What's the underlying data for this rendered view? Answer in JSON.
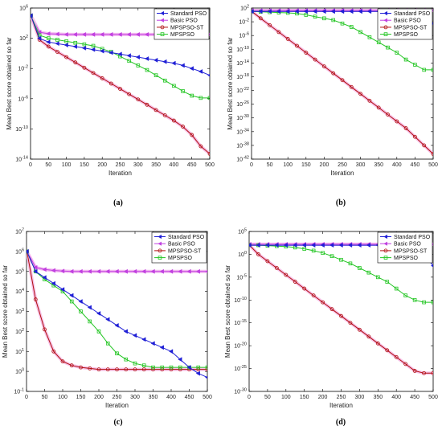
{
  "colors": {
    "standard_pso": "#1f1fd6",
    "basic_pso": "#c040e0",
    "mpspso_st": "#b01010",
    "mpspso": "#22c522",
    "basic_pso_halo": "#f4b8f0",
    "mpspso_st_halo": "#f7c2e8"
  },
  "chart_data": [
    {
      "id": "a",
      "type": "line",
      "caption": "(a)",
      "xlabel": "Iteration",
      "ylabel": "Mean Best score obtained so far",
      "yscale": "log",
      "xlim": [
        0,
        500
      ],
      "ylim_exp": [
        -14,
        6
      ],
      "x_ticks": [
        0,
        50,
        100,
        150,
        200,
        250,
        300,
        350,
        400,
        450,
        500
      ],
      "y_ticks_exp": [
        6,
        2,
        -2,
        -6,
        -10,
        -14
      ],
      "legend_position": "top-right",
      "x": [
        1,
        25,
        50,
        75,
        100,
        125,
        150,
        175,
        200,
        225,
        250,
        275,
        300,
        325,
        350,
        375,
        400,
        425,
        450,
        475,
        500
      ],
      "series": [
        {
          "name": "Standard PSO",
          "key": "standard_pso",
          "marker": "triangle-left",
          "log10_values": [
            5,
            2,
            1.5,
            1.3,
            1.1,
            0.9,
            0.7,
            0.5,
            0.3,
            0.1,
            -0.1,
            -0.3,
            -0.5,
            -0.7,
            -0.9,
            -1.1,
            -1.3,
            -1.6,
            -2,
            -2.4,
            -2.9
          ]
        },
        {
          "name": "Basic PSO",
          "key": "basic_pso",
          "marker": "triangle-left",
          "log10_values": [
            5,
            2.8,
            2.6,
            2.55,
            2.5,
            2.5,
            2.5,
            2.5,
            2.5,
            2.5,
            2.5,
            2.5,
            2.5,
            2.5,
            2.5,
            2.5,
            2.5,
            2.5,
            2.5,
            2.5,
            2.5
          ]
        },
        {
          "name": "MPSPSO-ST",
          "key": "mpspso_st",
          "marker": "circle",
          "log10_values": [
            5,
            1.8,
            0.9,
            0.2,
            -0.5,
            -1.2,
            -1.9,
            -2.6,
            -3.3,
            -4,
            -4.7,
            -5.4,
            -6.1,
            -6.8,
            -7.5,
            -8.2,
            -8.9,
            -9.7,
            -10.8,
            -12.3,
            -13.3
          ]
        },
        {
          "name": "MPSPSO",
          "key": "mpspso",
          "marker": "square",
          "log10_values": [
            5,
            2.4,
            2,
            1.8,
            1.6,
            1.4,
            1.2,
            1,
            0.6,
            0.2,
            -0.4,
            -1,
            -1.6,
            -2.2,
            -2.9,
            -3.6,
            -4.3,
            -5,
            -5.6,
            -5.9,
            -5.9
          ]
        }
      ]
    },
    {
      "id": "b",
      "type": "line",
      "caption": "(b)",
      "xlabel": "Iteration",
      "ylabel": "Mean Best score obtained so far",
      "yscale": "log",
      "xlim": [
        0,
        500
      ],
      "ylim_exp": [
        -42,
        2
      ],
      "x_ticks": [
        0,
        50,
        100,
        150,
        200,
        250,
        300,
        350,
        400,
        450,
        500
      ],
      "y_ticks_exp": [
        2,
        -2,
        -6,
        -10,
        -14,
        -18,
        -22,
        -26,
        -30,
        -34,
        -38,
        -42
      ],
      "legend_position": "top-right",
      "x": [
        1,
        25,
        50,
        75,
        100,
        125,
        150,
        175,
        200,
        225,
        250,
        275,
        300,
        325,
        350,
        375,
        400,
        425,
        450,
        475,
        500
      ],
      "series": [
        {
          "name": "Standard PSO",
          "key": "standard_pso",
          "marker": "triangle-left",
          "log10_values": [
            1,
            1,
            1,
            1,
            1,
            1,
            1,
            1,
            1,
            1,
            1,
            1,
            1,
            1,
            1,
            1,
            0.9,
            0.7,
            0.3,
            -0.6,
            -2.5
          ]
        },
        {
          "name": "Basic PSO",
          "key": "basic_pso",
          "marker": "triangle-left",
          "log10_values": [
            1.3,
            1.3,
            1.3,
            1.3,
            1.3,
            1.3,
            1.3,
            1.3,
            1.3,
            1.3,
            1.3,
            1.3,
            1.3,
            1.3,
            1.3,
            1.3,
            1.3,
            1.3,
            1.3,
            1.3,
            1.3
          ]
        },
        {
          "name": "MPSPSO-ST",
          "key": "mpspso_st",
          "marker": "circle",
          "log10_values": [
            1,
            -1,
            -3,
            -5,
            -7,
            -9,
            -11,
            -13,
            -15,
            -17,
            -19,
            -21,
            -23,
            -25,
            -27,
            -29,
            -31,
            -33,
            -35.5,
            -38,
            -40.5
          ]
        },
        {
          "name": "MPSPSO",
          "key": "mpspso",
          "marker": "square",
          "log10_values": [
            1,
            0.9,
            0.8,
            0.7,
            0.6,
            0.4,
            0,
            -0.5,
            -1,
            -1.5,
            -2.5,
            -3.5,
            -5,
            -6.5,
            -8,
            -9.5,
            -11,
            -13,
            -14.5,
            -16,
            -16
          ]
        }
      ]
    },
    {
      "id": "c",
      "type": "line",
      "caption": "(c)",
      "xlabel": "Iteration",
      "ylabel": "Mean Best score obtained so far",
      "yscale": "log",
      "xlim": [
        0,
        500
      ],
      "ylim_exp": [
        -1,
        7
      ],
      "x_ticks": [
        0,
        50,
        100,
        150,
        200,
        250,
        300,
        350,
        400,
        450,
        500
      ],
      "y_ticks_exp": [
        7,
        6,
        5,
        4,
        3,
        2,
        1,
        0,
        -1
      ],
      "legend_position": "top-right",
      "x": [
        1,
        25,
        50,
        75,
        100,
        125,
        150,
        175,
        200,
        225,
        250,
        275,
        300,
        325,
        350,
        375,
        400,
        425,
        450,
        475,
        500
      ],
      "series": [
        {
          "name": "Standard PSO",
          "key": "standard_pso",
          "marker": "triangle-left",
          "log10_values": [
            6,
            5,
            4.7,
            4.4,
            4.1,
            3.8,
            3.5,
            3.2,
            2.9,
            2.6,
            2.3,
            2,
            1.8,
            1.6,
            1.4,
            1.2,
            1,
            0.6,
            0.2,
            -0.1,
            -0.3
          ]
        },
        {
          "name": "Basic PSO",
          "key": "basic_pso",
          "marker": "triangle-left",
          "log10_values": [
            6,
            5.2,
            5.1,
            5.05,
            5.02,
            5,
            5,
            5,
            5,
            5,
            5,
            5,
            5,
            5,
            5,
            5,
            5,
            5,
            5,
            5,
            5
          ]
        },
        {
          "name": "MPSPSO-ST",
          "key": "mpspso_st",
          "marker": "circle",
          "log10_values": [
            6,
            3.6,
            2.1,
            1,
            0.5,
            0.3,
            0.2,
            0.15,
            0.1,
            0.1,
            0.1,
            0.1,
            0.1,
            0.1,
            0.1,
            0.1,
            0.1,
            0.1,
            0.1,
            0.1,
            0.1
          ]
        },
        {
          "name": "MPSPSO",
          "key": "mpspso",
          "marker": "square",
          "log10_values": [
            6,
            5,
            4.6,
            4.3,
            4,
            3.5,
            3,
            2.5,
            2,
            1.4,
            0.9,
            0.6,
            0.4,
            0.3,
            0.2,
            0.2,
            0.2,
            0.2,
            0.2,
            0.2,
            0.2
          ]
        }
      ]
    },
    {
      "id": "d",
      "type": "line",
      "caption": "(d)",
      "xlabel": "Iteration",
      "ylabel": "Mean Best score obtained so far",
      "yscale": "log",
      "xlim": [
        0,
        500
      ],
      "ylim_exp": [
        -30,
        5
      ],
      "x_ticks": [
        0,
        50,
        100,
        150,
        200,
        250,
        300,
        350,
        400,
        450,
        500
      ],
      "y_ticks_exp": [
        5,
        0,
        -5,
        -10,
        -15,
        -20,
        -25,
        -30
      ],
      "legend_position": "top-right",
      "x": [
        1,
        25,
        50,
        75,
        100,
        125,
        150,
        175,
        200,
        225,
        250,
        275,
        300,
        325,
        350,
        375,
        400,
        425,
        450,
        475,
        500
      ],
      "series": [
        {
          "name": "Standard PSO",
          "key": "standard_pso",
          "marker": "triangle-left",
          "log10_values": [
            2,
            2,
            2,
            2,
            2,
            2,
            2,
            2,
            2,
            2,
            2,
            2,
            2,
            2,
            2,
            2,
            1.9,
            1.7,
            1.2,
            0,
            -2.5
          ]
        },
        {
          "name": "Basic PSO",
          "key": "basic_pso",
          "marker": "triangle-left",
          "log10_values": [
            2.2,
            2.2,
            2.2,
            2.2,
            2.2,
            2.2,
            2.2,
            2.2,
            2.2,
            2.2,
            2.2,
            2.2,
            2.2,
            2.2,
            2.2,
            2.2,
            2.2,
            2.2,
            2.2,
            2.2,
            2.2
          ]
        },
        {
          "name": "MPSPSO-ST",
          "key": "mpspso_st",
          "marker": "circle",
          "log10_values": [
            2,
            0,
            -1.5,
            -3,
            -4.5,
            -6,
            -7.5,
            -9,
            -10.5,
            -12,
            -13.5,
            -15,
            -16.5,
            -18,
            -19.5,
            -21,
            -22.5,
            -24,
            -25.5,
            -26,
            -26
          ]
        },
        {
          "name": "MPSPSO",
          "key": "mpspso",
          "marker": "square",
          "log10_values": [
            2,
            2,
            1.9,
            1.8,
            1.7,
            1.5,
            1.2,
            0.8,
            0.3,
            -0.4,
            -1.2,
            -2,
            -3,
            -4,
            -5,
            -6,
            -7.5,
            -9,
            -10,
            -10.5,
            -10.5
          ]
        }
      ]
    }
  ]
}
